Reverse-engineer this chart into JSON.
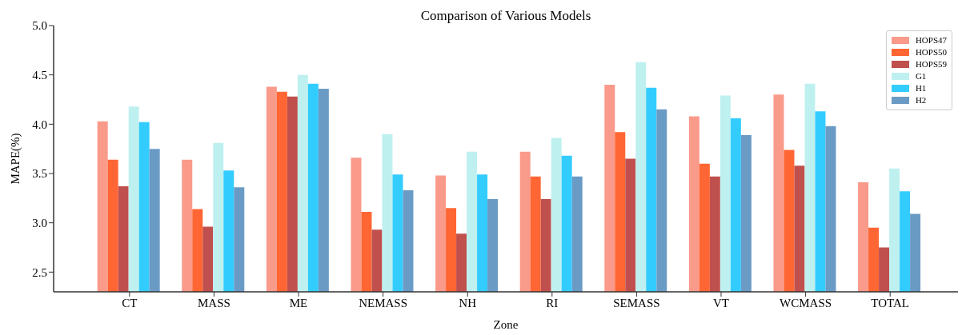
{
  "chart_data": {
    "type": "bar",
    "title": "Comparison of Various Models",
    "xlabel": "Zone",
    "ylabel": "MAPE(%)",
    "categories": [
      "CT",
      "MASS",
      "ME",
      "NEMASS",
      "NH",
      "RI",
      "SEMASS",
      "VT",
      "WCMASS",
      "TOTAL"
    ],
    "series": [
      {
        "name": "HOPS47",
        "color": "#fa9a8a",
        "values": [
          4.03,
          3.64,
          4.38,
          3.66,
          3.48,
          3.72,
          4.4,
          4.08,
          4.3,
          3.41
        ]
      },
      {
        "name": "HOPS50",
        "color": "#ff6633",
        "values": [
          3.64,
          3.14,
          4.33,
          3.11,
          3.15,
          3.47,
          3.92,
          3.6,
          3.74,
          2.95
        ]
      },
      {
        "name": "HOPS59",
        "color": "#c0504d",
        "values": [
          3.37,
          2.96,
          4.28,
          2.93,
          2.89,
          3.24,
          3.65,
          3.47,
          3.58,
          2.75
        ]
      },
      {
        "name": "G1",
        "color": "#bff0f0",
        "values": [
          4.18,
          3.81,
          4.5,
          3.9,
          3.72,
          3.86,
          4.63,
          4.29,
          4.41,
          3.55
        ]
      },
      {
        "name": "H1",
        "color": "#33ccff",
        "values": [
          4.02,
          3.53,
          4.41,
          3.49,
          3.49,
          3.68,
          4.37,
          4.06,
          4.13,
          3.32
        ]
      },
      {
        "name": "H2",
        "color": "#6a9bc5",
        "values": [
          3.75,
          3.36,
          4.36,
          3.33,
          3.24,
          3.47,
          4.15,
          3.89,
          3.98,
          3.09
        ]
      }
    ],
    "ylim": [
      2.3,
      5.0
    ],
    "yticks": [
      {
        "value": 2.5,
        "label": "2.5"
      },
      {
        "value": 3,
        "label": "3.0"
      },
      {
        "value": 3.5,
        "label": "3.5"
      },
      {
        "value": 4,
        "label": "4.0"
      },
      {
        "value": 4.5,
        "label": "4.5"
      },
      {
        "value": 5,
        "label": "5.0"
      }
    ],
    "grid": false,
    "legend": "top right"
  }
}
